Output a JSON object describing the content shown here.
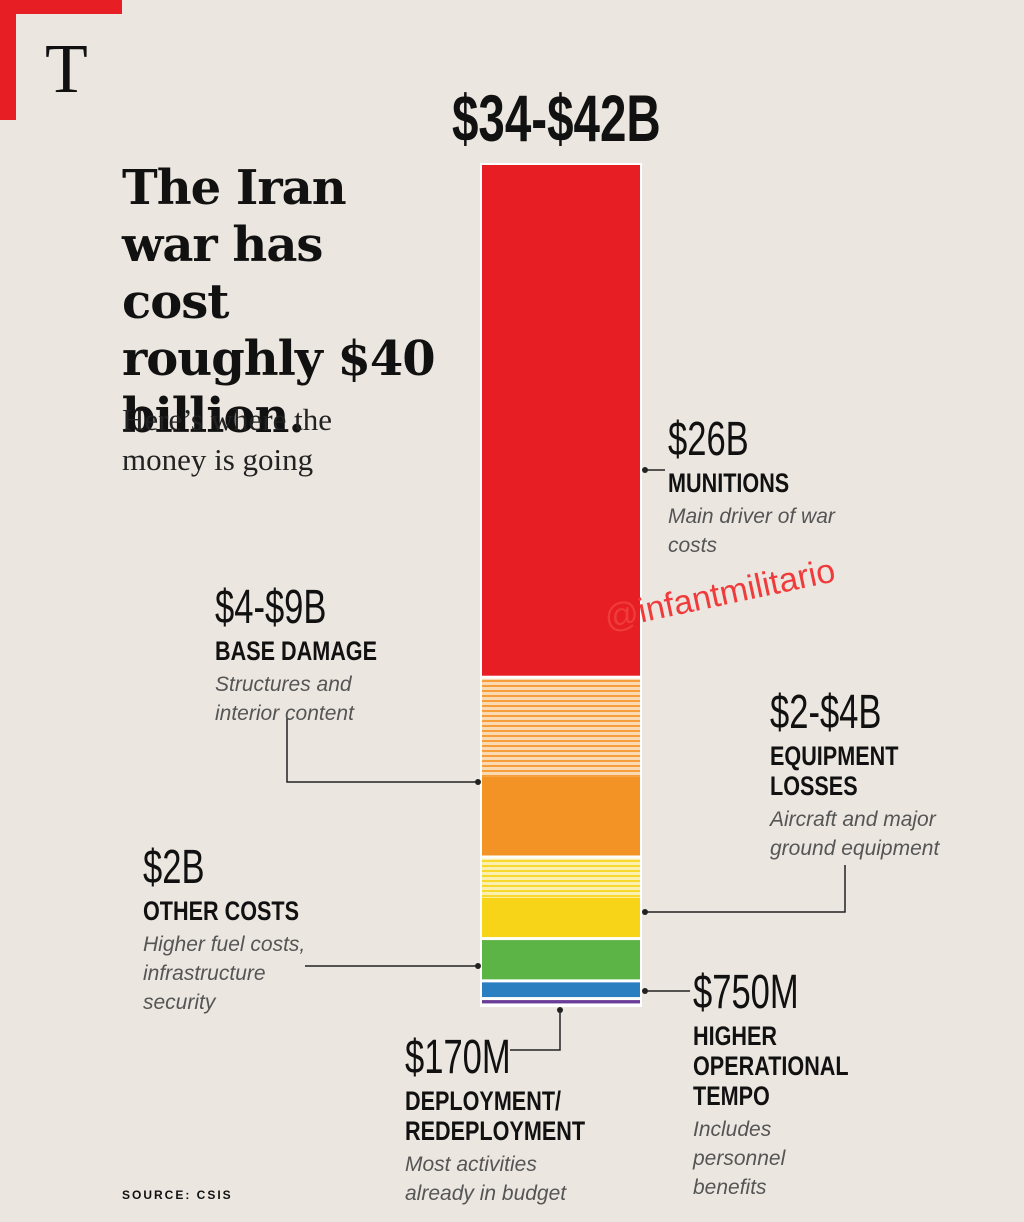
{
  "logo": "T",
  "chart_data": {
    "type": "stacked-bar",
    "title": "The Iran war has cost roughly $40 billion.",
    "subtitle": "Here’s where the money is going",
    "total_label": "$34-$42B",
    "total": [
      34,
      42
    ],
    "watermark": "@infantmilitario",
    "source": "SOURCE: CSIS",
    "segments": [
      {
        "name": "MUNITIONS",
        "value_label": "$26B",
        "note": "Main driver of war costs",
        "low": 26,
        "high": 26,
        "color": "#e81e25"
      },
      {
        "name": "BASE DAMAGE",
        "value_label": "$4-$9B",
        "note": "Structures and interior content",
        "low": 4,
        "high": 9,
        "color": "#f39325"
      },
      {
        "name": "EQUIPMENT LOSSES",
        "value_label": "$2-$4B",
        "note": "Aircraft and major ground equipment",
        "low": 2,
        "high": 4,
        "color": "#f7d417"
      },
      {
        "name": "OTHER COSTS",
        "value_label": "$2B",
        "note": "Higher fuel costs, infrastructure security",
        "low": 2,
        "high": 2,
        "color": "#5cb447"
      },
      {
        "name": "HIGHER OPERATIONAL TEMPO",
        "value_label": "$750M",
        "note": "Includes personnel benefits",
        "low": 0.75,
        "high": 0.75,
        "color": "#2a7fc1"
      },
      {
        "name": "DEPLOYMENT/ REDEPLOYMENT",
        "value_label": "$170M",
        "note": "Most activities already in budget",
        "low": 0.17,
        "high": 0.17,
        "color": "#6a3d96"
      }
    ]
  }
}
